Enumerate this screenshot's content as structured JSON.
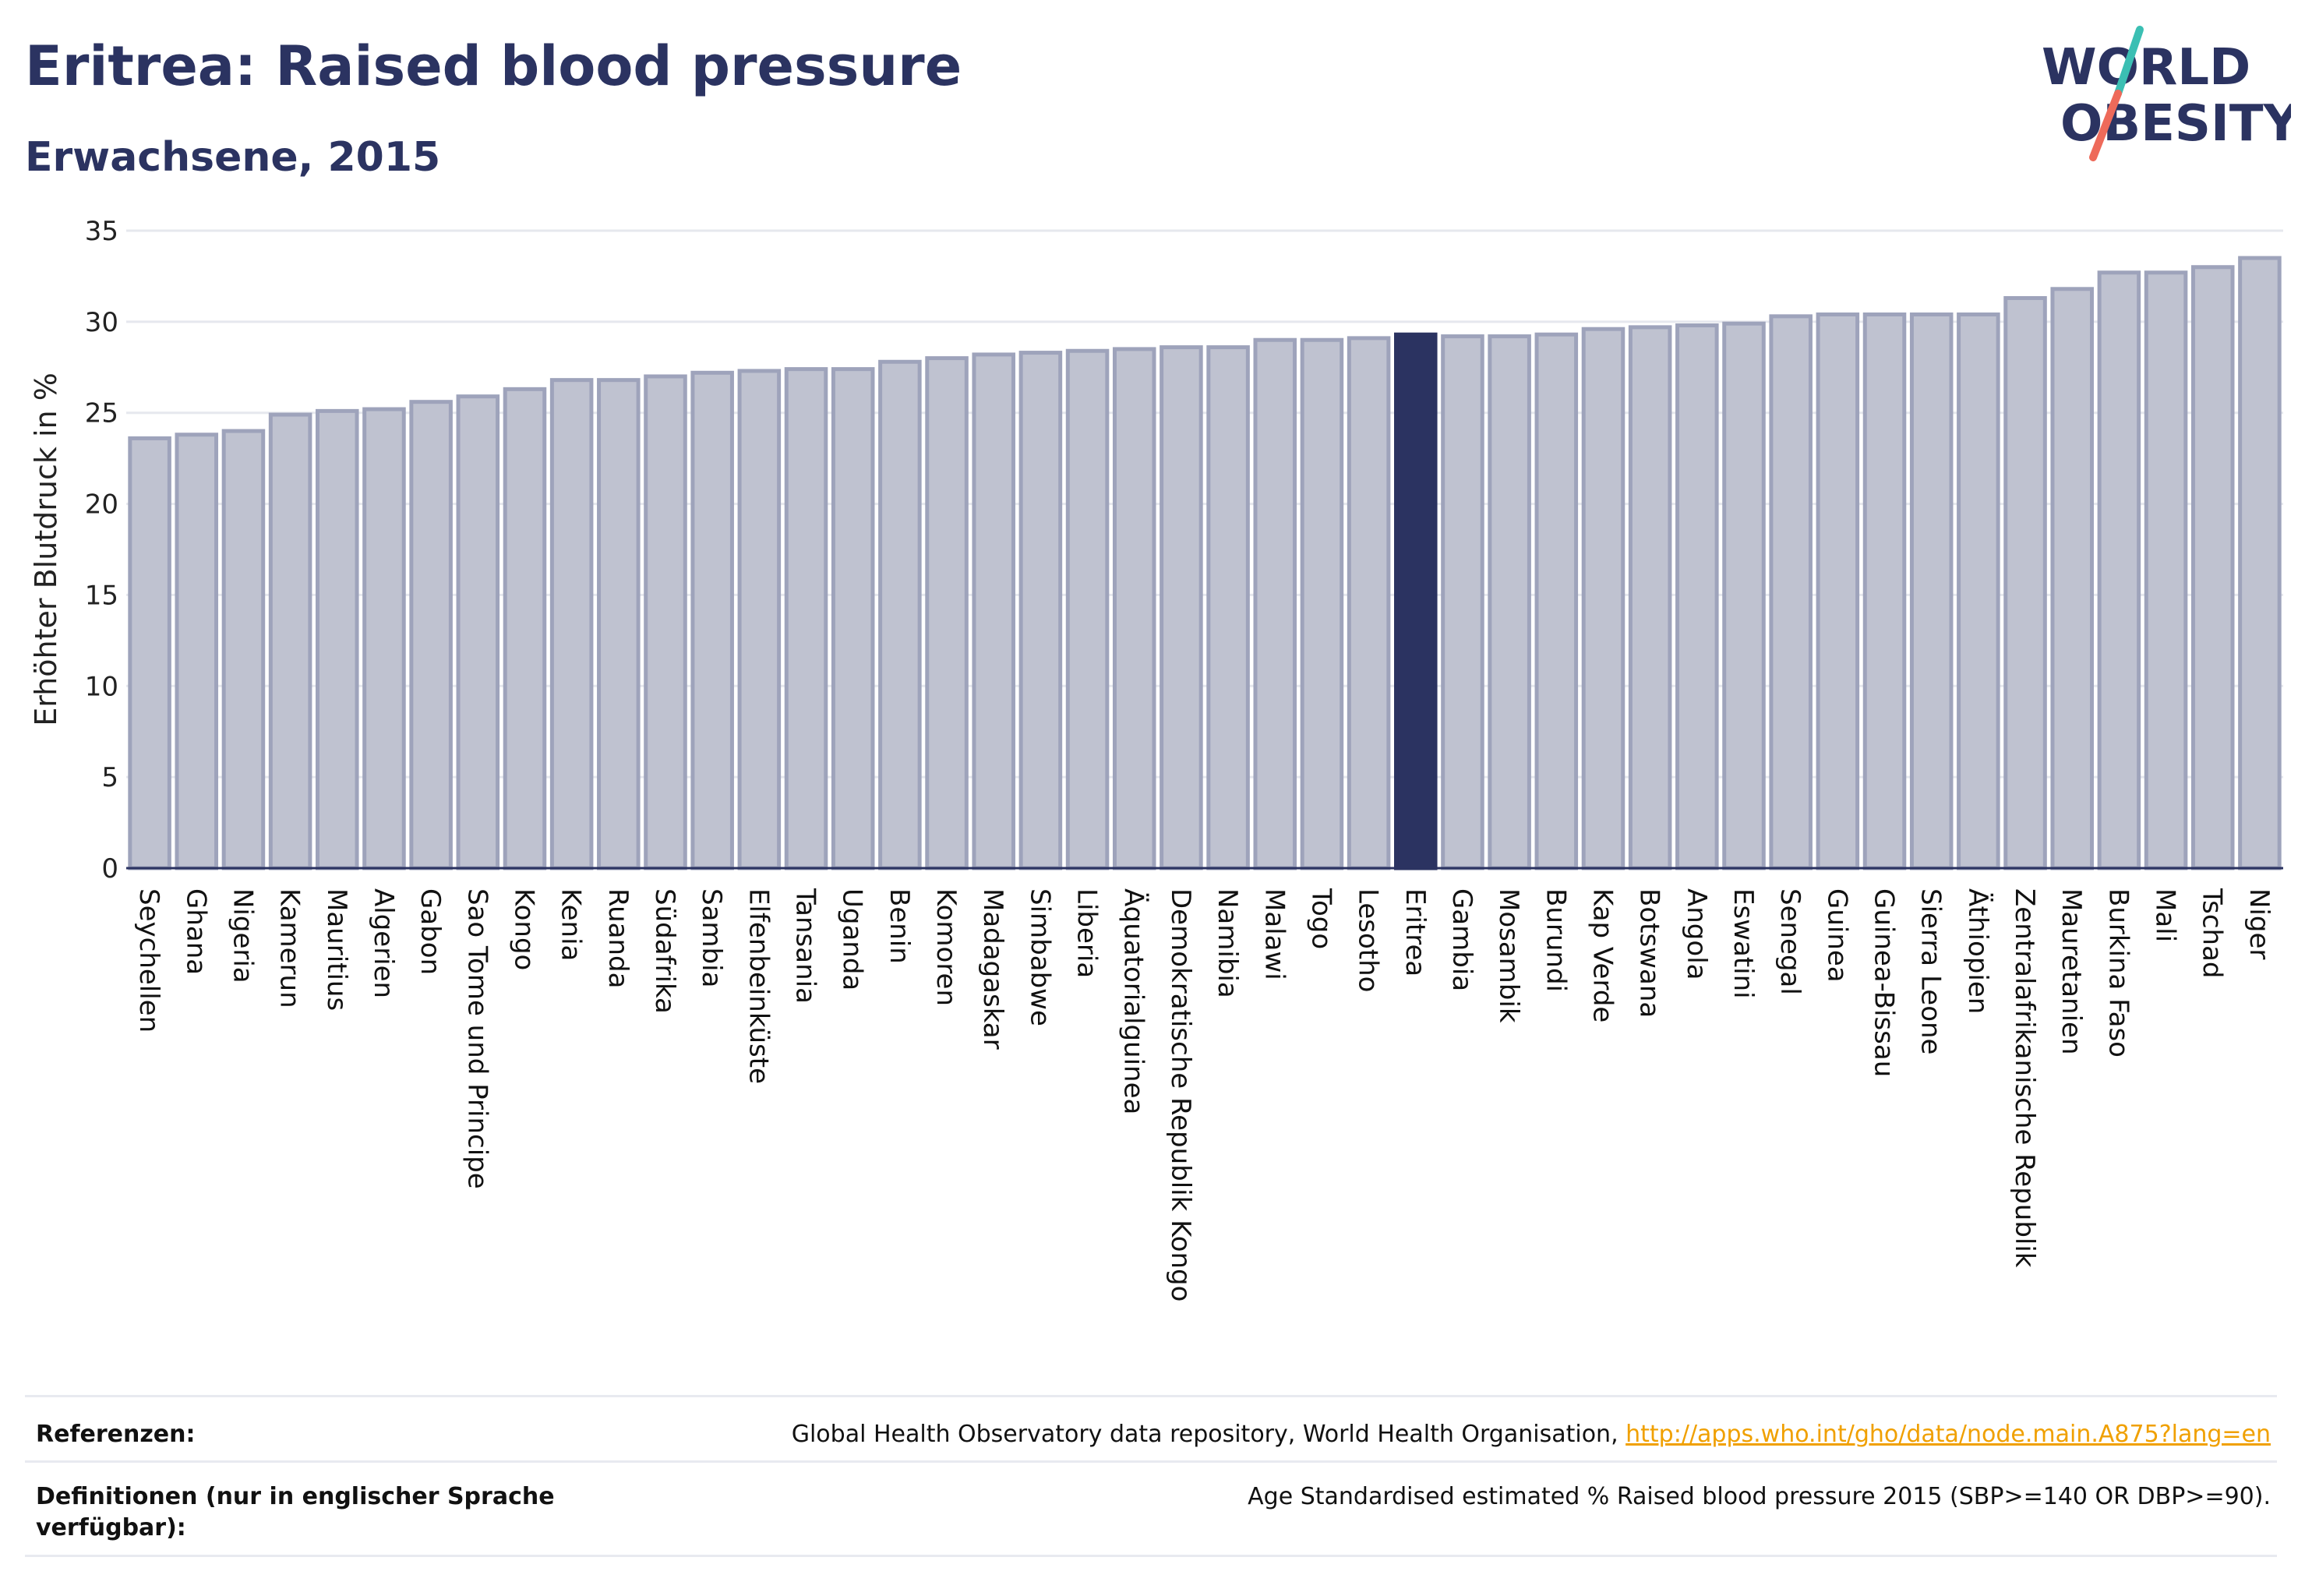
{
  "title": "Eritrea: Raised blood pressure",
  "subtitle": "Erwachsene, 2015",
  "logo": {
    "line1": "WORLD",
    "line2": "OBESITY"
  },
  "colors": {
    "bar_fill": "#bfc2d0",
    "bar_stroke": "#9ea3bb",
    "highlight": "#2b3361",
    "grid": "#e6e8ee",
    "text": "#2b3361",
    "link": "#f0a000",
    "logo_teal": "#3bbfb3",
    "logo_coral": "#ee6a5a"
  },
  "chart_data": {
    "type": "bar",
    "title": "Eritrea: Raised blood pressure",
    "subtitle": "Erwachsene, 2015",
    "ylabel": "Erhöhter Blutdruck in %",
    "xlabel": "",
    "ylim": [
      0,
      35
    ],
    "yticks": [
      0,
      5,
      10,
      15,
      20,
      25,
      30,
      35
    ],
    "grid": true,
    "highlight": "Eritrea",
    "categories": [
      "Seychellen",
      "Ghana",
      "Nigeria",
      "Kamerun",
      "Mauritius",
      "Algerien",
      "Gabon",
      "Sao Tome und Principe",
      "Kongo",
      "Kenia",
      "Ruanda",
      "Südafrika",
      "Sambia",
      "Elfenbeinküste",
      "Tansania",
      "Uganda",
      "Benin",
      "Komoren",
      "Madagaskar",
      "Simbabwe",
      "Liberia",
      "Äquatorialguinea",
      "Demokratische Republik Kongo",
      "Namibia",
      "Malawi",
      "Togo",
      "Lesotho",
      "Eritrea",
      "Gambia",
      "Mosambik",
      "Burundi",
      "Kap Verde",
      "Botswana",
      "Angola",
      "Eswatini",
      "Senegal",
      "Guinea",
      "Guinea-Bissau",
      "Sierra Leone",
      "Äthiopien",
      "Zentralafrikanische Republik",
      "Mauretanien",
      "Burkina Faso",
      "Mali",
      "Tschad",
      "Niger"
    ],
    "values": [
      23.6,
      23.8,
      24.0,
      24.9,
      25.1,
      25.2,
      25.6,
      25.9,
      26.3,
      26.8,
      26.8,
      27.0,
      27.2,
      27.3,
      27.4,
      27.4,
      27.8,
      28.0,
      28.2,
      28.3,
      28.4,
      28.5,
      28.6,
      28.6,
      29.0,
      29.0,
      29.1,
      29.3,
      29.2,
      29.2,
      29.3,
      29.6,
      29.7,
      29.8,
      29.9,
      30.3,
      30.4,
      30.4,
      30.4,
      30.4,
      31.3,
      31.8,
      32.7,
      32.7,
      33.0,
      33.5
    ]
  },
  "references": {
    "label": "Referenzen:",
    "text": "Global Health Observatory data repository, World Health Organisation, ",
    "link": "http://apps.who.int/gho/data/node.main.A875?lang=en"
  },
  "definitions": {
    "label": "Definitionen (nur in englischer Sprache verfügbar):",
    "text": "Age Standardised estimated % Raised blood pressure 2015 (SBP>=140 OR DBP>=90)."
  }
}
